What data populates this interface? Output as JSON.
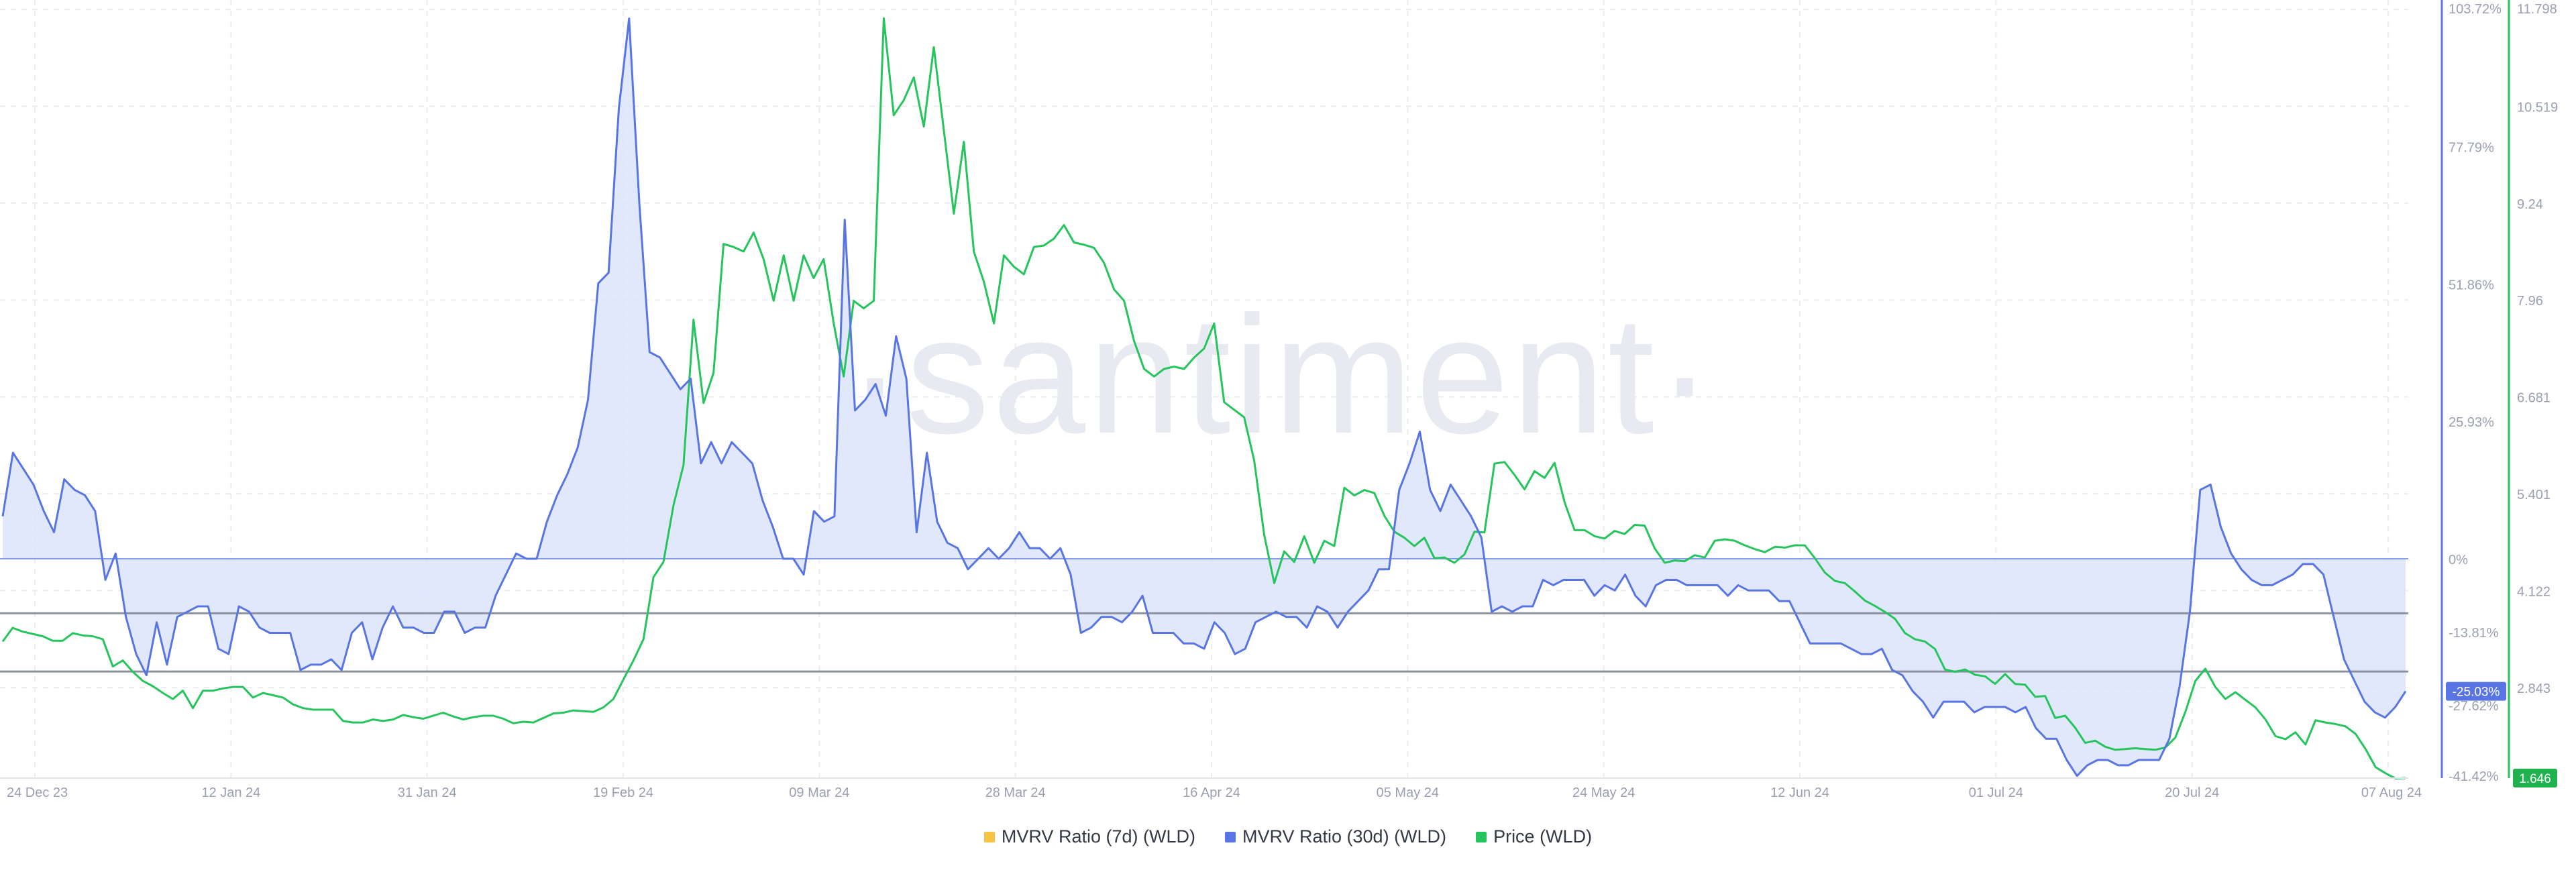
{
  "watermark": "·santiment·",
  "colors": {
    "mvrv7d": "#f6c443",
    "mvrv30d": "#5875e3",
    "mvrv30d_fill": "#dde4fb",
    "price": "#26c45c",
    "grid": "#ececf1",
    "threshold": "#7f8594",
    "axis_text": "#9aa0b0"
  },
  "legend": [
    {
      "label": "MVRV Ratio (7d) (WLD)",
      "color": "#f6c443"
    },
    {
      "label": "MVRV Ratio (30d) (WLD)",
      "color": "#5875e3"
    },
    {
      "label": "Price (WLD)",
      "color": "#26c45c"
    }
  ],
  "chart_data": {
    "type": "line",
    "title": "",
    "x_range": [
      "2023-12-20",
      "2024-08-07"
    ],
    "x_ticks": [
      "24 Dec 23",
      "12 Jan 24",
      "31 Jan 24",
      "19 Feb 24",
      "09 Mar 24",
      "28 Mar 24",
      "16 Apr 24",
      "05 May 24",
      "24 May 24",
      "12 Jun 24",
      "01 Jul 24",
      "20 Jul 24",
      "07 Aug 24"
    ],
    "y_axis_left_mvrv": {
      "range_pct": [
        -41.42,
        103.72
      ],
      "ticks": [
        "103.72%",
        "77.79%",
        "51.86%",
        "25.93%",
        "0%",
        "-13.81%",
        "-27.62%",
        "-41.42%"
      ],
      "current_badge": "-25.03%"
    },
    "y_axis_right_price": {
      "range": [
        1.646,
        11.798
      ],
      "ticks": [
        "11.798",
        "10.519",
        "9.24",
        "7.96",
        "6.681",
        "5.401",
        "4.122",
        "2.843",
        "1.646"
      ],
      "current_badge": "1.646"
    },
    "reference_lines_pct": [
      0,
      -10.3,
      -21.3
    ],
    "series": [
      {
        "name": "MVRV Ratio (7d) (WLD)",
        "axis": "left",
        "values": []
      },
      {
        "name": "MVRV Ratio (30d) (WLD)",
        "axis": "left",
        "values": [
          8,
          20,
          17,
          14,
          9,
          5,
          15,
          13,
          12,
          9,
          -4,
          1,
          -11,
          -18,
          -22,
          -12,
          -20,
          -11,
          -10,
          -9,
          -9,
          -17,
          -18,
          -9,
          -10,
          -13,
          -14,
          -14,
          -14,
          -21,
          -20,
          -20,
          -19,
          -21,
          -14,
          -12,
          -19,
          -13,
          -9,
          -13,
          -13,
          -14,
          -14,
          -10,
          -10,
          -14,
          -13,
          -13,
          -7,
          -3,
          1,
          0,
          0,
          7,
          12,
          16,
          21,
          30,
          52,
          54,
          85,
          102,
          67,
          39,
          38,
          35,
          32,
          34,
          18,
          22,
          18,
          22,
          20,
          18,
          11,
          6,
          0,
          0,
          -3,
          9,
          7,
          8,
          64,
          28,
          30,
          33,
          27,
          42,
          34,
          5,
          20,
          7,
          3,
          2,
          -2,
          0,
          2,
          0,
          2,
          5,
          2,
          2,
          0,
          2,
          -3,
          -14,
          -13,
          -11,
          -11,
          -12,
          -10,
          -7,
          -14,
          -14,
          -14,
          -16,
          -16,
          -17,
          -12,
          -14,
          -18,
          -17,
          -12,
          -11,
          -10,
          -11,
          -11,
          -13,
          -9,
          -10,
          -13,
          -10,
          -8,
          -6,
          -2,
          -2,
          13,
          18,
          24,
          13,
          9,
          14,
          11,
          8,
          4,
          -10,
          -9,
          -10,
          -9,
          -9,
          -4,
          -5,
          -4,
          -4,
          -4,
          -7,
          -5,
          -6,
          -3,
          -7,
          -9,
          -5,
          -4,
          -4,
          -5,
          -5,
          -5,
          -5,
          -7,
          -5,
          -6,
          -6,
          -6,
          -8,
          -8,
          -12,
          -16,
          -16,
          -16,
          -16,
          -17,
          -18,
          -18,
          -17,
          -21,
          -22,
          -25,
          -27,
          -30,
          -27,
          -27,
          -27,
          -29,
          -28,
          -28,
          -28,
          -29,
          -28,
          -32,
          -34,
          -34,
          -38,
          -41,
          -39,
          -38,
          -38,
          -39,
          -39,
          -38,
          -38,
          -38,
          -34,
          -24,
          -10,
          13,
          14,
          6,
          1,
          -2,
          -4,
          -5,
          -5,
          -4,
          -3,
          -1,
          -1,
          -3,
          -11,
          -19,
          -23,
          -27,
          -29,
          -30,
          -28,
          -25.03
        ]
      },
      {
        "name": "Price (WLD)",
        "axis": "right",
        "values": [
          3.45,
          3.63,
          3.58,
          3.55,
          3.52,
          3.46,
          3.46,
          3.56,
          3.53,
          3.52,
          3.48,
          3.12,
          3.2,
          3.05,
          2.93,
          2.86,
          2.77,
          2.69,
          2.8,
          2.57,
          2.8,
          2.8,
          2.83,
          2.85,
          2.85,
          2.71,
          2.77,
          2.74,
          2.71,
          2.62,
          2.57,
          2.55,
          2.55,
          2.55,
          2.4,
          2.38,
          2.38,
          2.42,
          2.4,
          2.42,
          2.48,
          2.45,
          2.43,
          2.47,
          2.51,
          2.46,
          2.42,
          2.45,
          2.47,
          2.47,
          2.43,
          2.37,
          2.39,
          2.38,
          2.44,
          2.5,
          2.51,
          2.54,
          2.53,
          2.52,
          2.58,
          2.69,
          2.95,
          3.2,
          3.48,
          4.3,
          4.5,
          5.25,
          5.78,
          7.7,
          6.6,
          7.0,
          8.7,
          8.66,
          8.6,
          8.85,
          8.5,
          7.95,
          8.55,
          7.95,
          8.55,
          8.25,
          8.5,
          7.65,
          6.95,
          7.95,
          7.85,
          7.95,
          11.68,
          10.4,
          10.6,
          10.9,
          10.25,
          11.3,
          10.2,
          9.1,
          10.05,
          8.6,
          8.2,
          7.65,
          8.55,
          8.4,
          8.3,
          8.66,
          8.68,
          8.77,
          8.95,
          8.72,
          8.69,
          8.65,
          8.45,
          8.1,
          7.95,
          7.42,
          7.05,
          6.95,
          7.05,
          7.08,
          7.05,
          7.2,
          7.32,
          7.65,
          6.61,
          6.51,
          6.41,
          5.84,
          4.86,
          4.22,
          4.64,
          4.5,
          4.84,
          4.49,
          4.78,
          4.71,
          5.48,
          5.38,
          5.45,
          5.41,
          5.11,
          4.9,
          4.82,
          4.71,
          4.82,
          4.55,
          4.56,
          4.49,
          4.6,
          4.9,
          4.89,
          5.8,
          5.82,
          5.65,
          5.46,
          5.7,
          5.61,
          5.81,
          5.29,
          4.92,
          4.92,
          4.84,
          4.81,
          4.91,
          4.87,
          4.99,
          4.98,
          4.68,
          4.49,
          4.52,
          4.51,
          4.59,
          4.56,
          4.78,
          4.8,
          4.78,
          4.72,
          4.67,
          4.63,
          4.7,
          4.69,
          4.72,
          4.72,
          4.55,
          4.36,
          4.25,
          4.22,
          4.11,
          3.99,
          3.92,
          3.84,
          3.75,
          3.56,
          3.48,
          3.45,
          3.35,
          3.08,
          3.05,
          3.08,
          3.01,
          2.99,
          2.89,
          3.02,
          2.89,
          2.88,
          2.72,
          2.73,
          2.44,
          2.47,
          2.31,
          2.11,
          2.14,
          2.06,
          2.02,
          2.03,
          2.04,
          2.03,
          2.02,
          2.05,
          2.18,
          2.52,
          2.93,
          3.09,
          2.85,
          2.69,
          2.78,
          2.68,
          2.58,
          2.42,
          2.2,
          2.16,
          2.25,
          2.09,
          2.41,
          2.38,
          2.36,
          2.33,
          2.23,
          2.03,
          1.79,
          1.71,
          1.64,
          1.646
        ]
      }
    ]
  }
}
